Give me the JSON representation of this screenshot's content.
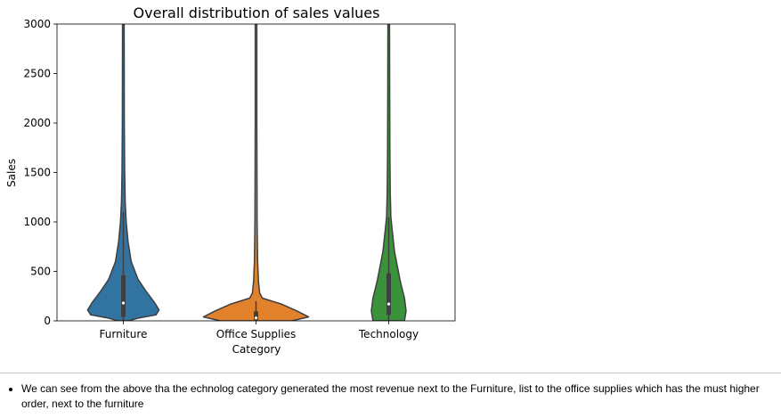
{
  "chart_data": {
    "type": "violin",
    "title": "Overall distribution of sales values",
    "xlabel": "Category",
    "ylabel": "Sales",
    "ylim": [
      0,
      3000
    ],
    "yticks": [
      0,
      500,
      1000,
      1500,
      2000,
      2500,
      3000
    ],
    "categories": [
      "Furniture",
      "Office Supplies",
      "Technology"
    ],
    "colors": [
      "#3274a1",
      "#e1812c",
      "#3a923a"
    ],
    "violins": [
      {
        "category": "Furniture",
        "q1": 40,
        "median": 180,
        "q3": 460,
        "whisker_low": 0,
        "whisker_high": 1100,
        "max_shown": 3000,
        "profile": [
          [
            0,
            0.1
          ],
          [
            30,
            0.3
          ],
          [
            60,
            0.62
          ],
          [
            110,
            0.68
          ],
          [
            180,
            0.6
          ],
          [
            300,
            0.43
          ],
          [
            420,
            0.28
          ],
          [
            600,
            0.15
          ],
          [
            800,
            0.09
          ],
          [
            1000,
            0.055
          ],
          [
            1200,
            0.035
          ],
          [
            1500,
            0.025
          ],
          [
            2000,
            0.018
          ],
          [
            3000,
            0.015
          ]
        ]
      },
      {
        "category": "Office Supplies",
        "q1": 10,
        "median": 30,
        "q3": 95,
        "whisker_low": 0,
        "whisker_high": 200,
        "max_shown": 3000,
        "profile": [
          [
            0,
            0.68
          ],
          [
            40,
            1.0
          ],
          [
            100,
            0.78
          ],
          [
            170,
            0.48
          ],
          [
            230,
            0.12
          ],
          [
            280,
            0.07
          ],
          [
            400,
            0.045
          ],
          [
            600,
            0.03
          ],
          [
            1000,
            0.02
          ],
          [
            2000,
            0.015
          ],
          [
            3000,
            0.015
          ]
        ]
      },
      {
        "category": "Technology",
        "q1": 60,
        "median": 170,
        "q3": 480,
        "whisker_low": 0,
        "whisker_high": 1050,
        "max_shown": 3000,
        "profile": [
          [
            0,
            0.3
          ],
          [
            100,
            0.33
          ],
          [
            230,
            0.3
          ],
          [
            400,
            0.22
          ],
          [
            700,
            0.11
          ],
          [
            900,
            0.07
          ],
          [
            1050,
            0.04
          ],
          [
            1300,
            0.028
          ],
          [
            1700,
            0.022
          ],
          [
            2200,
            0.018
          ],
          [
            3000,
            0.015
          ]
        ]
      }
    ]
  },
  "notes": [
    "We can see from the above tha the echnolog category generated the most revenue next to the Furniture, list to the office supplies which has the must higher order, next to the furniture"
  ]
}
